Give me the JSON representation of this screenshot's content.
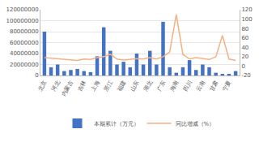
{
  "chart_data": {
    "type": "bar",
    "categories": [
      "北京",
      null,
      "河北",
      null,
      "内蒙古",
      null,
      "吉林",
      null,
      "上海",
      null,
      "浙江",
      null,
      "福建",
      null,
      "山东",
      null,
      "湖北",
      null,
      "广东",
      null,
      "海南",
      null,
      "四川",
      null,
      "云南",
      null,
      "甘肃",
      null,
      "宁夏",
      null
    ],
    "series": [
      {
        "name": "本期累计（万元）",
        "type": "bar",
        "color": "#4472c4",
        "values": [
          80000000,
          15000000,
          20000000,
          8000000,
          10000000,
          12000000,
          8000000,
          6000000,
          35000000,
          88000000,
          45000000,
          20000000,
          25000000,
          15000000,
          40000000,
          20000000,
          45000000,
          20000000,
          98000000,
          15000000,
          5000000,
          15000000,
          28000000,
          10000000,
          20000000,
          15000000,
          5000000,
          2000000,
          3000000,
          8000000
        ]
      },
      {
        "name": "同比增减（%）",
        "type": "line",
        "axis": "y2",
        "color": "#f4b183",
        "values": [
          18,
          17,
          16,
          15,
          14,
          12,
          15,
          14,
          18,
          20,
          25,
          15,
          13,
          14,
          16,
          15,
          18,
          15,
          20,
          30,
          110,
          25,
          15,
          18,
          16,
          14,
          20,
          65,
          15,
          12
        ]
      }
    ],
    "ylim": [
      0,
      120000000
    ],
    "yticks": [
      0,
      20000000,
      40000000,
      60000000,
      80000000,
      100000000,
      120000000
    ],
    "y2lim": [
      -20,
      120
    ],
    "y2ticks": [
      -20,
      0,
      20,
      40,
      60,
      80,
      100,
      120
    ],
    "grid": true,
    "legend": "bottom"
  }
}
